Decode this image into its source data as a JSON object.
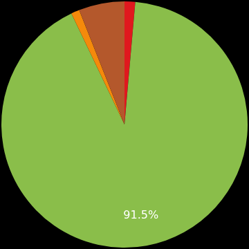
{
  "chart_data": {
    "type": "pie",
    "categories": [
      null,
      null,
      null,
      null
    ],
    "values": [
      1.4,
      91.5,
      1.1,
      6.0
    ],
    "value_labels": [
      null,
      "91.5%",
      null,
      null
    ],
    "colors": [
      "#e0181e",
      "#8abe4a",
      "#f58a0b",
      "#b4582c"
    ],
    "data_labels": true
  }
}
